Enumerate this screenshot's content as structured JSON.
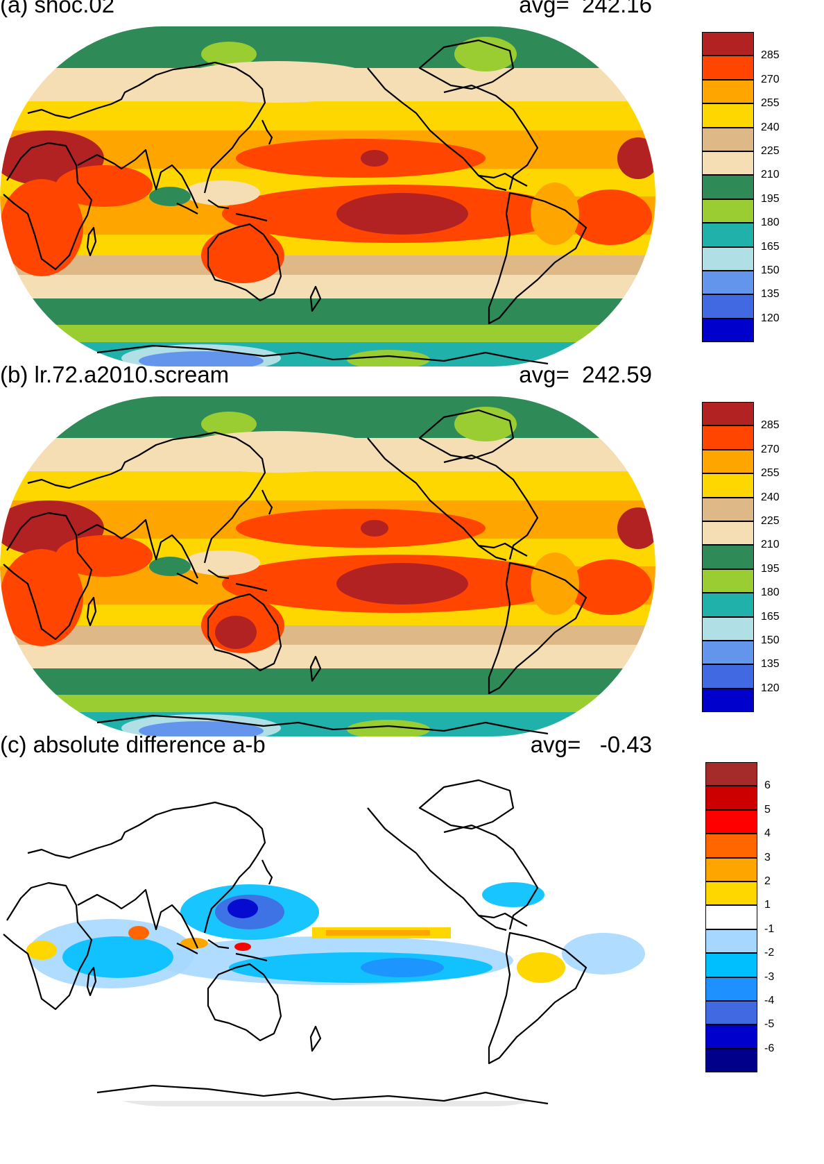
{
  "panels": [
    {
      "title": "(a) shoc.02",
      "avg_label": "avg=",
      "avg_value": "242.16",
      "field": "abs"
    },
    {
      "title": "(b) lr.72.a2010.scream",
      "avg_label": "avg=",
      "avg_value": "242.59",
      "field": "abs"
    },
    {
      "title": "(c) absolute difference a-b",
      "avg_label": "avg=",
      "avg_value": "-0.43",
      "field": "diff"
    }
  ],
  "colorbars": {
    "absolute": {
      "labels": [
        "285",
        "270",
        "255",
        "240",
        "225",
        "210",
        "195",
        "180",
        "165",
        "150",
        "135",
        "120"
      ],
      "colors": [
        "#B22222",
        "#FF4500",
        "#FFA500",
        "#FFD700",
        "#DEB887",
        "#F5DEB3",
        "#2E8B57",
        "#9ACD32",
        "#20B2AA",
        "#B0E0E6",
        "#6495ED",
        "#4169E1",
        "#0000CD"
      ]
    },
    "difference": {
      "labels": [
        "6",
        "5",
        "4",
        "3",
        "2",
        "1",
        "-1",
        "-2",
        "-3",
        "-4",
        "-5",
        "-6"
      ],
      "colors": [
        "#A52A2A",
        "#CD0000",
        "#FF0000",
        "#FF6600",
        "#FFA500",
        "#FFD700",
        "#FFFFFF",
        "#A6D8FF",
        "#00BFFF",
        "#1E90FF",
        "#4169E1",
        "#0000CD",
        "#00008B"
      ]
    }
  },
  "chart_data": {
    "type": "heatmap",
    "projection": "Robinson (Pacific-centered)",
    "panels": [
      {
        "name": "shoc.02",
        "global_avg": 242.16
      },
      {
        "name": "lr.72.a2010.scream",
        "global_avg": 242.59
      },
      {
        "name": "absolute difference a-b",
        "global_avg": -0.43
      }
    ],
    "absolute_levels": [
      120,
      135,
      150,
      165,
      180,
      195,
      210,
      225,
      240,
      255,
      270,
      285
    ],
    "difference_levels": [
      -6,
      -5,
      -4,
      -3,
      -2,
      -1,
      1,
      2,
      3,
      4,
      5,
      6
    ]
  }
}
